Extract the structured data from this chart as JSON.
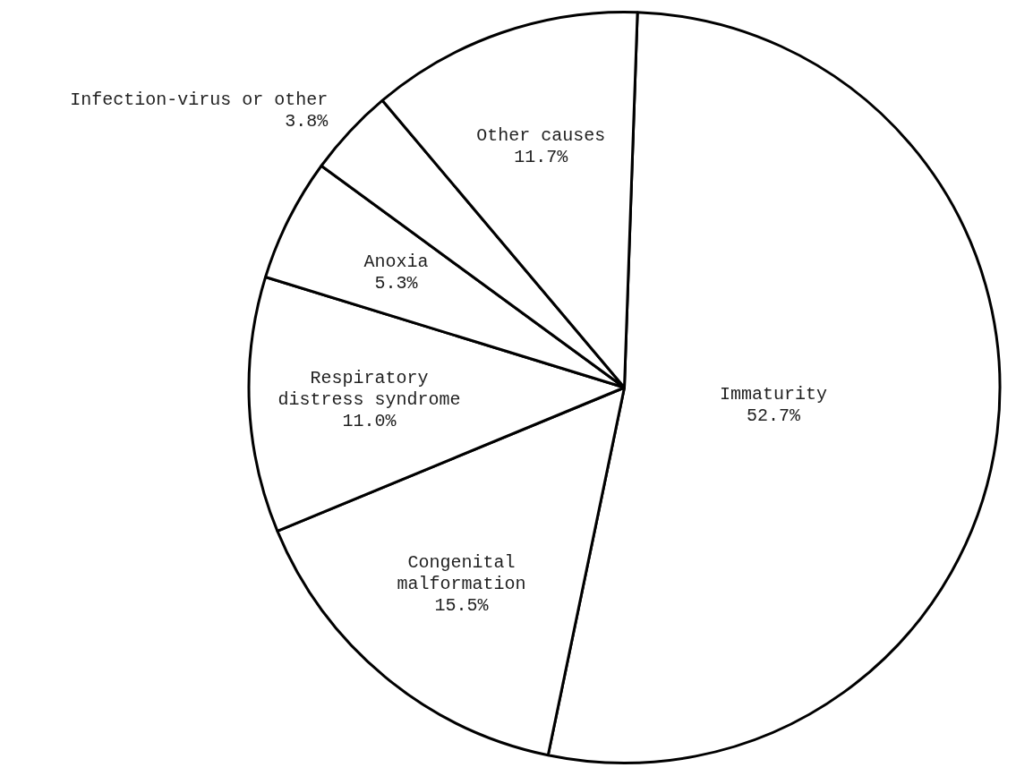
{
  "chart_data": {
    "type": "pie",
    "categories": [
      "Immaturity",
      "Congenital malformation",
      "Respiratory distress syndrome",
      "Anoxia",
      "Infection-virus or other",
      "Other causes"
    ],
    "values": [
      52.7,
      15.5,
      11.0,
      5.3,
      3.8,
      11.7
    ],
    "value_labels": [
      "52.7%",
      "15.5%",
      "11.0%",
      "5.3%",
      "3.8%",
      "11.7%"
    ],
    "colors": [
      "#ffffff",
      "#ffffff",
      "#ffffff",
      "#ffffff",
      "#ffffff",
      "#ffffff"
    ],
    "legend": false
  }
}
